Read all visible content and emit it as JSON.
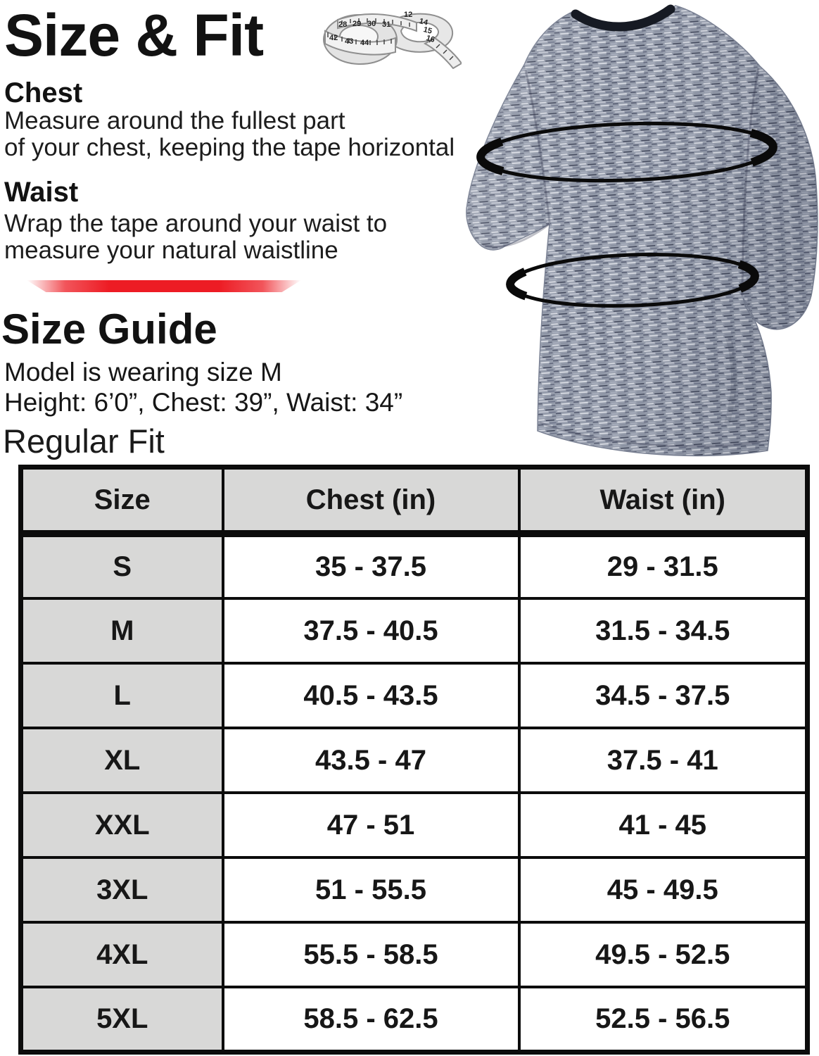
{
  "colors": {
    "accent_red": "#ed1c24",
    "table_header_bg": "#d8d8d7",
    "table_border": "#0c0c0c",
    "text": "#161616",
    "shirt_base": "#959cab",
    "collar": "#161a23"
  },
  "header": {
    "title": "Size & Fit"
  },
  "icons": {
    "tape_measure": "tape-measure-icon",
    "tape_numbers": [
      "28",
      "29",
      "30",
      "31",
      "42",
      "43",
      "44",
      "14",
      "15",
      "16",
      "12"
    ]
  },
  "chest_section": {
    "title": "Chest",
    "line1": "Measure around the fullest part",
    "line2": "of your chest, keeping the tape horizontal"
  },
  "waist_section": {
    "title": "Waist",
    "line1": "Wrap the tape around your waist to",
    "line2": "measure your natural waistline"
  },
  "size_guide": {
    "title": "Size Guide",
    "model_line": "Model is wearing size M",
    "measurements_line": "Height: 6’0”, Chest: 39”, Waist: 34”",
    "fit_label": "Regular Fit"
  },
  "table": {
    "headers": [
      "Size",
      "Chest (in)",
      "Waist (in)"
    ],
    "rows": [
      [
        "S",
        "35 - 37.5",
        "29 - 31.5"
      ],
      [
        "M",
        "37.5 - 40.5",
        "31.5 - 34.5"
      ],
      [
        "L",
        "40.5 - 43.5",
        "34.5 - 37.5"
      ],
      [
        "XL",
        "43.5 - 47",
        "37.5 - 41"
      ],
      [
        "XXL",
        "47 - 51",
        "41 - 45"
      ],
      [
        "3XL",
        "51 - 55.5",
        "45 - 49.5"
      ],
      [
        "4XL",
        "55.5 - 58.5",
        "49.5 - 52.5"
      ],
      [
        "5XL",
        "58.5 - 62.5",
        "52.5 - 56.5"
      ]
    ]
  },
  "chart_data": {
    "type": "table",
    "title": "Regular Fit size chart",
    "columns": [
      "Size",
      "Chest (in)",
      "Waist (in)"
    ],
    "rows": [
      [
        "S",
        "35 - 37.5",
        "29 - 31.5"
      ],
      [
        "M",
        "37.5 - 40.5",
        "31.5 - 34.5"
      ],
      [
        "L",
        "40.5 - 43.5",
        "34.5 - 37.5"
      ],
      [
        "XL",
        "43.5 - 47",
        "37.5 - 41"
      ],
      [
        "XXL",
        "47 - 51",
        "41 - 45"
      ],
      [
        "3XL",
        "51 - 55.5",
        "45 - 49.5"
      ],
      [
        "4XL",
        "55.5 - 58.5",
        "49.5 - 52.5"
      ],
      [
        "5XL",
        "58.5 - 62.5",
        "52.5 - 56.5"
      ]
    ]
  }
}
